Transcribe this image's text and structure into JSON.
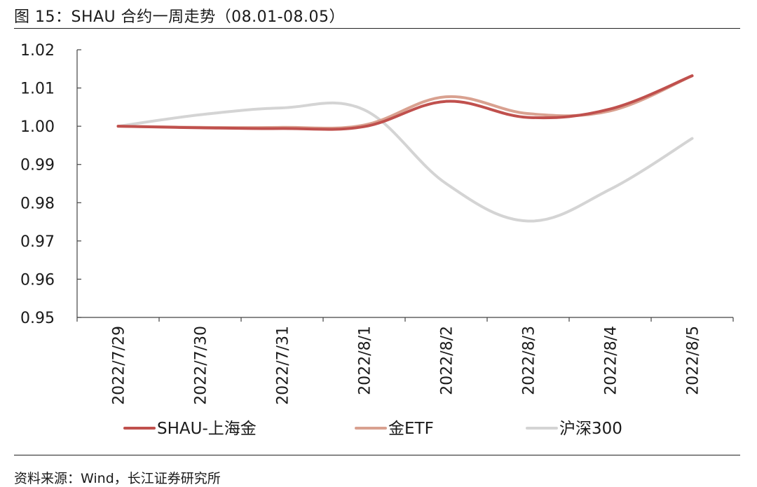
{
  "figure": {
    "title": "图 15：SHAU 合约一周走势（08.01-08.05）",
    "source": "资料来源：Wind，长江证券研究所"
  },
  "chart_data": {
    "type": "line",
    "title": "",
    "xlabel": "",
    "ylabel": "",
    "ylim": [
      0.95,
      1.02
    ],
    "yticks": [
      "1.02",
      "1.01",
      "1.00",
      "0.99",
      "0.98",
      "0.97",
      "0.96",
      "0.95"
    ],
    "categories": [
      "2022/7/29",
      "2022/7/30",
      "2022/7/31",
      "2022/8/1",
      "2022/8/2",
      "2022/8/3",
      "2022/8/4",
      "2022/8/5"
    ],
    "grid": false,
    "legend_position": "bottom",
    "series": [
      {
        "name": "SHAU-上海金",
        "color": "#c0504d",
        "values": [
          1.0,
          0.9996,
          0.9994,
          0.9999,
          1.0065,
          1.0023,
          1.0045,
          1.0132
        ]
      },
      {
        "name": "金ETF",
        "color": "#d9a190",
        "values": [
          1.0,
          0.9997,
          0.9997,
          1.0003,
          1.0077,
          1.0033,
          1.004,
          1.0132
        ]
      },
      {
        "name": "沪深300",
        "color": "#d4d4d4",
        "values": [
          1.0,
          1.003,
          1.0048,
          1.0043,
          0.985,
          0.9752,
          0.9835,
          0.9968
        ]
      }
    ]
  }
}
